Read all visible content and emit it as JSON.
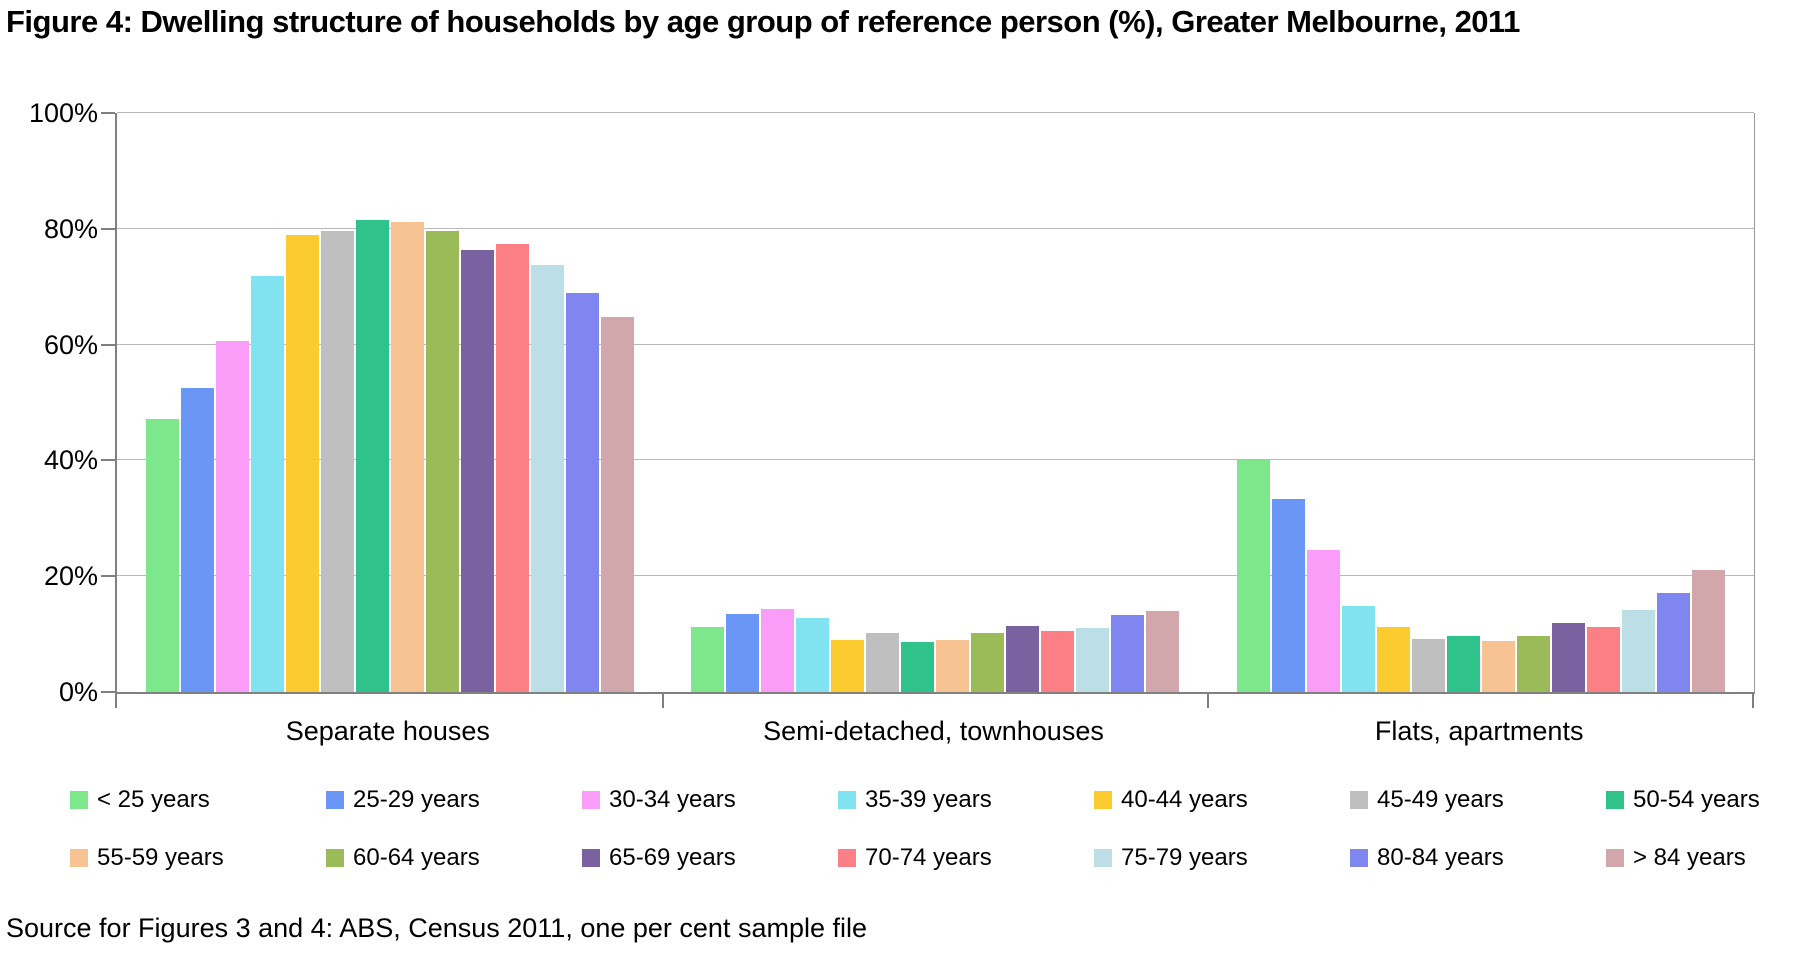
{
  "title": "Figure 4: Dwelling structure of households by age group of reference person (%), Greater Melbourne, 2011",
  "source_note": "Source for Figures 3 and 4: ABS, Census 2011, one per cent sample file",
  "chart_data": {
    "type": "bar",
    "title": "Dwelling structure of households by age group of reference person (%), Greater Melbourne, 2011",
    "categories": [
      "Separate houses",
      "Semi-detached, townhouses",
      "Flats, apartments"
    ],
    "y_axis": {
      "ticks": [
        0,
        20,
        40,
        60,
        80,
        100
      ],
      "unit": "%",
      "min": 0,
      "max": 100,
      "grid": true
    },
    "legend_position": "bottom",
    "series": [
      {
        "name": "< 25 years",
        "color": "#7ce88b",
        "values": [
          47.2,
          11.3,
          40.0
        ]
      },
      {
        "name": "25-29 years",
        "color": "#6a96f5",
        "values": [
          52.5,
          13.5,
          33.4
        ]
      },
      {
        "name": "30-34 years",
        "color": "#fa9df8",
        "values": [
          60.6,
          14.3,
          24.5
        ]
      },
      {
        "name": "35-39 years",
        "color": "#81e3f0",
        "values": [
          71.8,
          12.8,
          14.8
        ]
      },
      {
        "name": "40-44 years",
        "color": "#fccb2f",
        "values": [
          79.0,
          8.9,
          11.3
        ]
      },
      {
        "name": "45-49 years",
        "color": "#bfbfbf",
        "values": [
          79.7,
          10.2,
          9.2
        ]
      },
      {
        "name": "50-54 years",
        "color": "#2fc28b",
        "values": [
          81.5,
          8.7,
          9.6
        ]
      },
      {
        "name": "55-59 years",
        "color": "#f8c393",
        "values": [
          81.2,
          8.9,
          8.8
        ]
      },
      {
        "name": "60-64 years",
        "color": "#9bbb59",
        "values": [
          79.6,
          10.2,
          9.6
        ]
      },
      {
        "name": "65-69 years",
        "color": "#7a62a0",
        "values": [
          76.4,
          11.4,
          11.9
        ]
      },
      {
        "name": "70-74 years",
        "color": "#fc7f86",
        "values": [
          77.3,
          10.5,
          11.3
        ]
      },
      {
        "name": "75-79 years",
        "color": "#bcdee6",
        "values": [
          73.8,
          11.1,
          14.2
        ]
      },
      {
        "name": "80-84 years",
        "color": "#7f86f0",
        "values": [
          69.0,
          13.3,
          17.1
        ]
      },
      {
        "name": "> 84 years",
        "color": "#d2a7ab",
        "values": [
          64.7,
          14.0,
          21.0
        ]
      }
    ]
  }
}
